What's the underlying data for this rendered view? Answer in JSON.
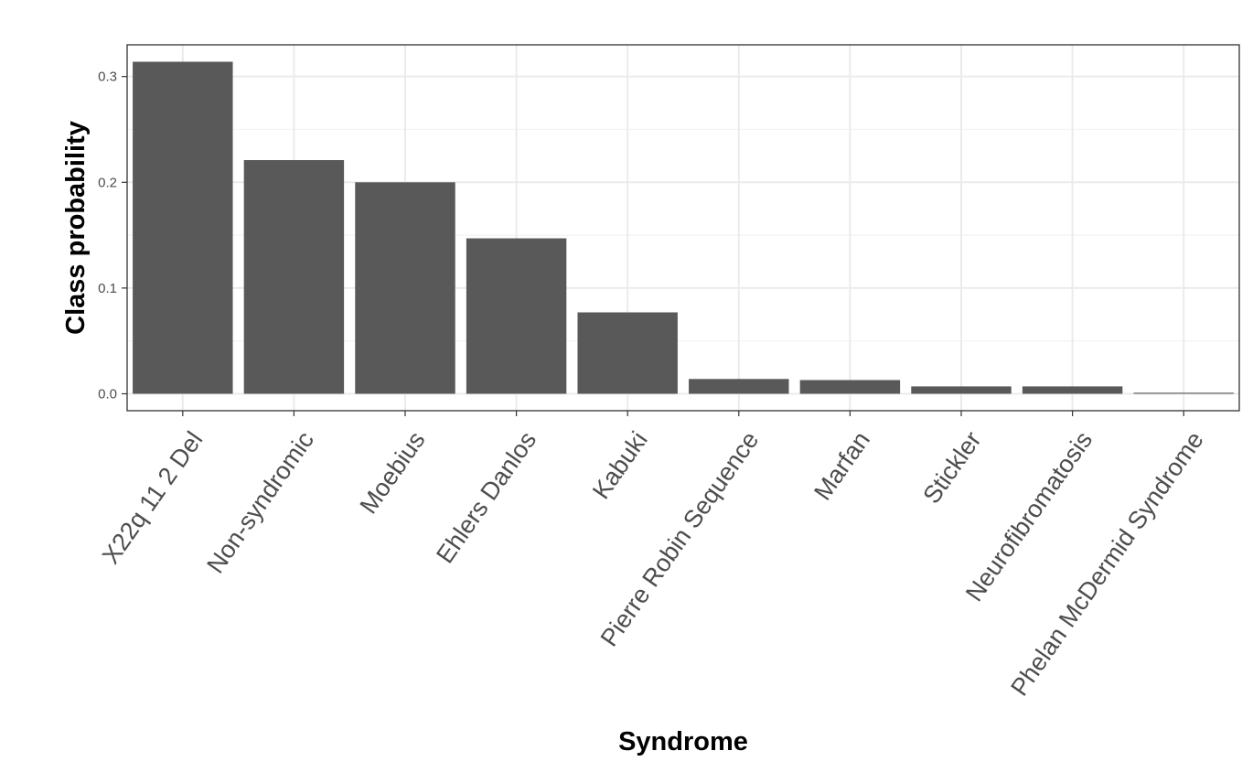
{
  "chart_data": {
    "type": "bar",
    "title": "",
    "xlabel": "Syndrome",
    "ylabel": "Class probability",
    "categories": [
      "X22q 11 2 Del",
      "Non-syndromic",
      "Moebius",
      "Ehlers Danlos",
      "Kabuki",
      "Pierre Robin Sequence",
      "Marfan",
      "Stickler",
      "Neurofibromatosis",
      "Phelan McDermid Syndrome"
    ],
    "values": [
      0.314,
      0.221,
      0.2,
      0.147,
      0.077,
      0.014,
      0.013,
      0.007,
      0.007,
      0.001
    ],
    "yticks": [
      0.0,
      0.1,
      0.2,
      0.3
    ],
    "ytick_labels": [
      "0.0",
      "0.1",
      "0.2",
      "0.3"
    ],
    "ylim": [
      -0.016,
      0.33
    ],
    "grid": true,
    "legend": "none",
    "colors": {
      "bar": "#595959",
      "grid_major": "#ebebeb",
      "grid_minor": "#f3f3f3",
      "panel_border": "#333333",
      "tick_text": "#4d4d4d"
    }
  }
}
